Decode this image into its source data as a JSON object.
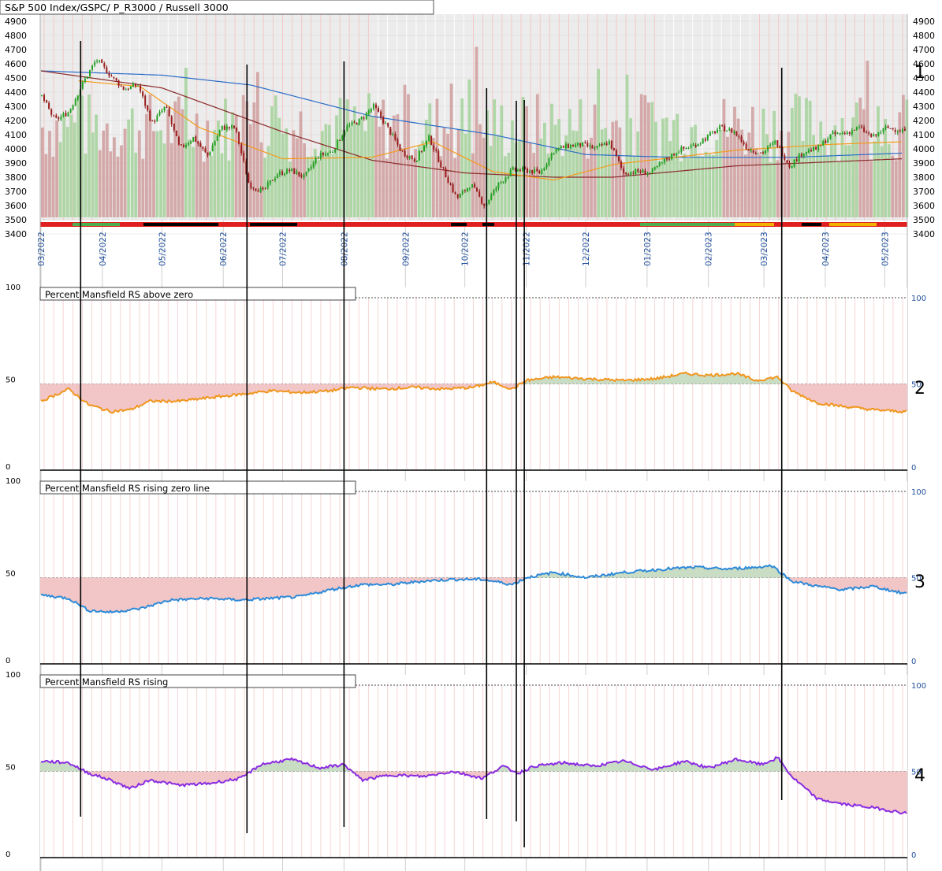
{
  "chart_data": [
    {
      "type": "candlestick",
      "title": "S&P 500 Index/GSPC/ P_R3000 / Russell 3000",
      "panel_number": "1",
      "ylim": [
        3400,
        4950
      ],
      "yticks": [
        3400,
        3500,
        3600,
        3700,
        3800,
        3900,
        4000,
        4100,
        4200,
        4300,
        4400,
        4500,
        4600,
        4700,
        4800,
        4900
      ],
      "xticks": [
        "03/2022",
        "04/2022",
        "05/2022",
        "06/2022",
        "07/2022",
        "08/2022",
        "09/2022",
        "10/2022",
        "11/2022",
        "12/2022",
        "01/2023",
        "02/2023",
        "03/2023",
        "04/2023",
        "05/2023"
      ],
      "price_path": [
        [
          "2022-03-01",
          4380
        ],
        [
          "2022-03-08",
          4200
        ],
        [
          "2022-03-15",
          4260
        ],
        [
          "2022-03-22",
          4460
        ],
        [
          "2022-03-29",
          4630
        ],
        [
          "2022-04-05",
          4520
        ],
        [
          "2022-04-12",
          4420
        ],
        [
          "2022-04-19",
          4450
        ],
        [
          "2022-04-26",
          4180
        ],
        [
          "2022-05-03",
          4300
        ],
        [
          "2022-05-10",
          4000
        ],
        [
          "2022-05-17",
          4080
        ],
        [
          "2022-05-24",
          3950
        ],
        [
          "2022-05-31",
          4150
        ],
        [
          "2022-06-07",
          4150
        ],
        [
          "2022-06-14",
          3750
        ],
        [
          "2022-06-21",
          3700
        ],
        [
          "2022-06-28",
          3820
        ],
        [
          "2022-07-05",
          3850
        ],
        [
          "2022-07-12",
          3800
        ],
        [
          "2022-07-19",
          3950
        ],
        [
          "2022-07-26",
          3980
        ],
        [
          "2022-08-02",
          4150
        ],
        [
          "2022-08-09",
          4200
        ],
        [
          "2022-08-16",
          4300
        ],
        [
          "2022-08-23",
          4150
        ],
        [
          "2022-08-30",
          3980
        ],
        [
          "2022-09-06",
          3920
        ],
        [
          "2022-09-13",
          4080
        ],
        [
          "2022-09-20",
          3850
        ],
        [
          "2022-09-27",
          3650
        ],
        [
          "2022-10-04",
          3750
        ],
        [
          "2022-10-11",
          3600
        ],
        [
          "2022-10-18",
          3750
        ],
        [
          "2022-10-25",
          3850
        ],
        [
          "2022-11-01",
          3850
        ],
        [
          "2022-11-08",
          3830
        ],
        [
          "2022-11-15",
          3990
        ],
        [
          "2022-11-22",
          4020
        ],
        [
          "2022-11-29",
          4030
        ],
        [
          "2022-12-06",
          4000
        ],
        [
          "2022-12-13",
          4050
        ],
        [
          "2022-12-20",
          3830
        ],
        [
          "2022-12-27",
          3840
        ],
        [
          "2023-01-03",
          3830
        ],
        [
          "2023-01-10",
          3920
        ],
        [
          "2023-01-17",
          3990
        ],
        [
          "2023-01-24",
          4020
        ],
        [
          "2023-01-31",
          4080
        ],
        [
          "2023-02-07",
          4150
        ],
        [
          "2023-02-14",
          4120
        ],
        [
          "2023-02-21",
          4000
        ],
        [
          "2023-02-28",
          3970
        ],
        [
          "2023-03-07",
          4050
        ],
        [
          "2023-03-14",
          3880
        ],
        [
          "2023-03-21",
          3980
        ],
        [
          "2023-03-28",
          4000
        ],
        [
          "2023-04-04",
          4100
        ],
        [
          "2023-04-11",
          4110
        ],
        [
          "2023-04-18",
          4150
        ],
        [
          "2023-04-25",
          4080
        ],
        [
          "2023-05-02",
          4150
        ],
        [
          "2023-05-09",
          4130
        ]
      ],
      "ma_red": [
        [
          "2022-03-01",
          4550
        ],
        [
          "2022-05-01",
          4430
        ],
        [
          "2022-07-01",
          4120
        ],
        [
          "2022-08-15",
          3920
        ],
        [
          "2022-10-01",
          3830
        ],
        [
          "2022-11-15",
          3800
        ],
        [
          "2022-12-15",
          3800
        ],
        [
          "2023-02-15",
          3880
        ],
        [
          "2023-05-10",
          3930
        ]
      ],
      "ma_blue": [
        [
          "2022-03-01",
          4550
        ],
        [
          "2022-05-01",
          4520
        ],
        [
          "2022-06-15",
          4450
        ],
        [
          "2022-08-15",
          4230
        ],
        [
          "2022-10-15",
          4100
        ],
        [
          "2022-12-01",
          3960
        ],
        [
          "2023-01-15",
          3940
        ],
        [
          "2023-03-15",
          3940
        ],
        [
          "2023-05-10",
          3970
        ]
      ],
      "ma_orange": [
        [
          "2022-03-20",
          4480
        ],
        [
          "2022-04-20",
          4440
        ],
        [
          "2022-05-20",
          4150
        ],
        [
          "2022-07-01",
          3930
        ],
        [
          "2022-08-15",
          3940
        ],
        [
          "2022-09-15",
          4050
        ],
        [
          "2022-10-15",
          3840
        ],
        [
          "2022-11-15",
          3780
        ],
        [
          "2022-12-15",
          3890
        ],
        [
          "2023-02-15",
          3990
        ],
        [
          "2023-04-01",
          4030
        ],
        [
          "2023-05-10",
          4050
        ]
      ],
      "vertical_markers": [
        "2022-03-21",
        "2022-06-13",
        "2022-08-01",
        "2022-10-12",
        "2022-10-27",
        "2022-10-31",
        "2023-03-10"
      ]
    },
    {
      "type": "line",
      "title": "Percent Mansfield RS above zero",
      "panel_number": "2",
      "ylim": [
        0,
        100
      ],
      "reference": 50,
      "color": "#f0961e",
      "values": [
        [
          "2022-03-01",
          40
        ],
        [
          "2022-03-15",
          47
        ],
        [
          "2022-03-25",
          38
        ],
        [
          "2022-04-05",
          34
        ],
        [
          "2022-04-15",
          35
        ],
        [
          "2022-04-25",
          40
        ],
        [
          "2022-05-10",
          40
        ],
        [
          "2022-05-25",
          42
        ],
        [
          "2022-06-10",
          44
        ],
        [
          "2022-06-25",
          46
        ],
        [
          "2022-07-10",
          45
        ],
        [
          "2022-07-25",
          46
        ],
        [
          "2022-08-05",
          48
        ],
        [
          "2022-08-20",
          47
        ],
        [
          "2022-09-05",
          48
        ],
        [
          "2022-09-20",
          47
        ],
        [
          "2022-10-05",
          48
        ],
        [
          "2022-10-15",
          51
        ],
        [
          "2022-10-25",
          47
        ],
        [
          "2022-11-01",
          52
        ],
        [
          "2022-11-15",
          54
        ],
        [
          "2022-12-01",
          53
        ],
        [
          "2022-12-20",
          52
        ],
        [
          "2023-01-05",
          53
        ],
        [
          "2023-01-20",
          56
        ],
        [
          "2023-02-01",
          55
        ],
        [
          "2023-02-15",
          56
        ],
        [
          "2023-02-25",
          52
        ],
        [
          "2023-03-08",
          54
        ],
        [
          "2023-03-15",
          46
        ],
        [
          "2023-03-28",
          39
        ],
        [
          "2023-04-10",
          37
        ],
        [
          "2023-04-25",
          35
        ],
        [
          "2023-05-10",
          34
        ]
      ]
    },
    {
      "type": "line",
      "title": "Percent Mansfield RS rising zero line",
      "panel_number": "3",
      "ylim": [
        0,
        100
      ],
      "reference": 50,
      "color": "#2e8ad8",
      "values": [
        [
          "2022-03-01",
          40
        ],
        [
          "2022-03-15",
          38
        ],
        [
          "2022-03-25",
          31
        ],
        [
          "2022-04-05",
          30
        ],
        [
          "2022-04-20",
          32
        ],
        [
          "2022-05-05",
          37
        ],
        [
          "2022-05-25",
          38
        ],
        [
          "2022-06-10",
          37
        ],
        [
          "2022-06-25",
          38
        ],
        [
          "2022-07-10",
          39
        ],
        [
          "2022-07-25",
          43
        ],
        [
          "2022-08-10",
          46
        ],
        [
          "2022-08-25",
          46
        ],
        [
          "2022-09-10",
          48
        ],
        [
          "2022-09-25",
          49
        ],
        [
          "2022-10-10",
          49
        ],
        [
          "2022-10-25",
          46
        ],
        [
          "2022-11-01",
          50
        ],
        [
          "2022-11-15",
          53
        ],
        [
          "2022-12-01",
          50
        ],
        [
          "2022-12-20",
          53
        ],
        [
          "2023-01-10",
          55
        ],
        [
          "2023-01-25",
          56
        ],
        [
          "2023-02-10",
          55
        ],
        [
          "2023-02-25",
          56
        ],
        [
          "2023-03-05",
          57
        ],
        [
          "2023-03-15",
          48
        ],
        [
          "2023-03-28",
          45
        ],
        [
          "2023-04-10",
          43
        ],
        [
          "2023-04-25",
          45
        ],
        [
          "2023-05-10",
          41
        ]
      ]
    },
    {
      "type": "line",
      "title": "Percent Mansfield RS rising",
      "panel_number": "4",
      "ylim": [
        0,
        100
      ],
      "reference": 50,
      "color": "#8a2be2",
      "values": [
        [
          "2022-03-01",
          56
        ],
        [
          "2022-03-15",
          55
        ],
        [
          "2022-03-25",
          49
        ],
        [
          "2022-04-05",
          45
        ],
        [
          "2022-04-15",
          40
        ],
        [
          "2022-04-25",
          45
        ],
        [
          "2022-05-10",
          42
        ],
        [
          "2022-05-25",
          43
        ],
        [
          "2022-06-10",
          46
        ],
        [
          "2022-06-20",
          54
        ],
        [
          "2022-07-05",
          57
        ],
        [
          "2022-07-20",
          52
        ],
        [
          "2022-08-01",
          54
        ],
        [
          "2022-08-10",
          45
        ],
        [
          "2022-08-25",
          48
        ],
        [
          "2022-09-10",
          47
        ],
        [
          "2022-09-25",
          50
        ],
        [
          "2022-10-10",
          46
        ],
        [
          "2022-10-20",
          53
        ],
        [
          "2022-10-28",
          49
        ],
        [
          "2022-11-05",
          53
        ],
        [
          "2022-11-20",
          55
        ],
        [
          "2022-12-05",
          53
        ],
        [
          "2022-12-20",
          56
        ],
        [
          "2023-01-05",
          51
        ],
        [
          "2023-01-20",
          56
        ],
        [
          "2023-02-01",
          52
        ],
        [
          "2023-02-15",
          57
        ],
        [
          "2023-02-28",
          54
        ],
        [
          "2023-03-08",
          58
        ],
        [
          "2023-03-15",
          47
        ],
        [
          "2023-03-28",
          34
        ],
        [
          "2023-04-10",
          31
        ],
        [
          "2023-04-25",
          29
        ],
        [
          "2023-05-10",
          26
        ]
      ]
    }
  ]
}
